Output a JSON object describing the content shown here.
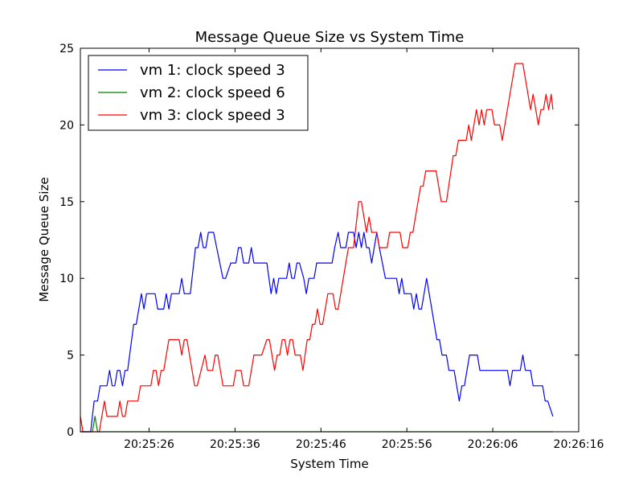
{
  "chart_data": {
    "type": "line",
    "title": "Message Queue Size vs System Time",
    "xlabel": "System Time",
    "ylabel": "Message Queue Size",
    "ylim": [
      0,
      25
    ],
    "yticks": [
      0,
      5,
      10,
      15,
      20,
      25
    ],
    "xlim": [
      "20:25:18",
      "20:26:16"
    ],
    "xticks": [
      "20:25:26",
      "20:25:36",
      "20:25:46",
      "20:25:56",
      "20:26:06",
      "20:26:16"
    ],
    "legend_position": "top-left",
    "grid": false,
    "series": [
      {
        "name": "vm 1: clock speed 3",
        "color": "#0000ff",
        "points": [
          [
            "20:25:18.0",
            0
          ],
          [
            "20:25:19.2",
            0
          ],
          [
            "20:25:19.6",
            2
          ],
          [
            "20:25:20.0",
            2
          ],
          [
            "20:25:20.3",
            3
          ],
          [
            "20:25:21.1",
            3
          ],
          [
            "20:25:21.4",
            4
          ],
          [
            "20:25:21.7",
            3
          ],
          [
            "20:25:22.0",
            3
          ],
          [
            "20:25:22.3",
            4
          ],
          [
            "20:25:22.6",
            4
          ],
          [
            "20:25:22.9",
            3
          ],
          [
            "20:25:23.2",
            4
          ],
          [
            "20:25:23.5",
            4
          ],
          [
            "20:25:24.2",
            7
          ],
          [
            "20:25:24.5",
            7
          ],
          [
            "20:25:25.1",
            9
          ],
          [
            "20:25:25.4",
            8
          ],
          [
            "20:25:25.7",
            9
          ],
          [
            "20:25:26.7",
            9
          ],
          [
            "20:25:27.0",
            8
          ],
          [
            "20:25:27.7",
            8
          ],
          [
            "20:25:28.0",
            9
          ],
          [
            "20:25:28.3",
            8
          ],
          [
            "20:25:28.6",
            9
          ],
          [
            "20:25:29.5",
            9
          ],
          [
            "20:25:29.8",
            10
          ],
          [
            "20:25:30.1",
            9
          ],
          [
            "20:25:30.8",
            9
          ],
          [
            "20:25:31.4",
            12
          ],
          [
            "20:25:31.7",
            12
          ],
          [
            "20:25:32.0",
            13
          ],
          [
            "20:25:32.3",
            12
          ],
          [
            "20:25:32.6",
            12
          ],
          [
            "20:25:32.9",
            13
          ],
          [
            "20:25:33.5",
            13
          ],
          [
            "20:25:34.6",
            10
          ],
          [
            "20:25:34.9",
            10
          ],
          [
            "20:25:35.5",
            11
          ],
          [
            "20:25:36.1",
            11
          ],
          [
            "20:25:36.4",
            12
          ],
          [
            "20:25:36.7",
            12
          ],
          [
            "20:25:37.0",
            11
          ],
          [
            "20:25:37.6",
            11
          ],
          [
            "20:25:37.9",
            12
          ],
          [
            "20:25:38.2",
            11
          ],
          [
            "20:25:39.7",
            11
          ],
          [
            "20:25:40.2",
            9
          ],
          [
            "20:25:40.5",
            10
          ],
          [
            "20:25:40.8",
            9
          ],
          [
            "20:25:41.1",
            10
          ],
          [
            "20:25:42.0",
            10
          ],
          [
            "20:25:42.3",
            11
          ],
          [
            "20:25:42.6",
            10
          ],
          [
            "20:25:42.9",
            10
          ],
          [
            "20:25:43.2",
            11
          ],
          [
            "20:25:43.5",
            11
          ],
          [
            "20:25:44.0",
            10
          ],
          [
            "20:25:44.3",
            9
          ],
          [
            "20:25:44.6",
            10
          ],
          [
            "20:25:45.2",
            10
          ],
          [
            "20:25:45.5",
            11
          ],
          [
            "20:25:47.3",
            11
          ],
          [
            "20:25:47.6",
            12
          ],
          [
            "20:25:48.0",
            13
          ],
          [
            "20:25:48.3",
            12
          ],
          [
            "20:25:48.9",
            12
          ],
          [
            "20:25:49.2",
            13
          ],
          [
            "20:25:49.8",
            13
          ],
          [
            "20:25:50.1",
            12
          ],
          [
            "20:25:50.4",
            13
          ],
          [
            "20:25:50.7",
            12
          ],
          [
            "20:25:51.0",
            13
          ],
          [
            "20:25:51.3",
            12
          ],
          [
            "20:25:51.6",
            12
          ],
          [
            "20:25:51.9",
            11
          ],
          [
            "20:25:52.2",
            12
          ],
          [
            "20:25:52.5",
            13
          ],
          [
            "20:25:52.8",
            12
          ],
          [
            "20:25:53.5",
            10
          ],
          [
            "20:25:54.8",
            10
          ],
          [
            "20:25:55.1",
            9
          ],
          [
            "20:25:55.4",
            10
          ],
          [
            "20:25:55.7",
            9
          ],
          [
            "20:25:56.5",
            9
          ],
          [
            "20:25:56.8",
            8
          ],
          [
            "20:25:57.1",
            9
          ],
          [
            "20:25:57.4",
            8
          ],
          [
            "20:25:57.7",
            8
          ],
          [
            "20:25:58.3",
            10
          ],
          [
            "20:25:59.5",
            6
          ],
          [
            "20:25:59.8",
            6
          ],
          [
            "20:26:00.1",
            5
          ],
          [
            "20:26:00.6",
            5
          ],
          [
            "20:26:00.9",
            4
          ],
          [
            "20:26:01.5",
            4
          ],
          [
            "20:26:02.1",
            2
          ],
          [
            "20:26:02.4",
            3
          ],
          [
            "20:26:02.7",
            3
          ],
          [
            "20:26:03.3",
            5
          ],
          [
            "20:26:04.2",
            5
          ],
          [
            "20:26:04.5",
            4
          ],
          [
            "20:26:07.7",
            4
          ],
          [
            "20:26:08.0",
            3
          ],
          [
            "20:26:08.3",
            4
          ],
          [
            "20:26:09.2",
            4
          ],
          [
            "20:26:09.5",
            5
          ],
          [
            "20:26:09.8",
            4
          ],
          [
            "20:26:10.4",
            4
          ],
          [
            "20:26:10.7",
            3
          ],
          [
            "20:26:11.8",
            3
          ],
          [
            "20:26:12.1",
            2
          ],
          [
            "20:26:12.4",
            2
          ],
          [
            "20:26:13.0",
            1
          ]
        ]
      },
      {
        "name": "vm 2: clock speed 6",
        "color": "#008000",
        "points": [
          [
            "20:25:18.0",
            0
          ],
          [
            "20:25:19.4",
            0
          ],
          [
            "20:25:19.7",
            1
          ],
          [
            "20:25:20.0",
            0
          ],
          [
            "20:26:13.0",
            0
          ]
        ]
      },
      {
        "name": "vm 3: clock speed 3",
        "color": "#ff0000",
        "points": [
          [
            "20:25:18.0",
            1
          ],
          [
            "20:25:18.3",
            0
          ],
          [
            "20:25:20.2",
            0
          ],
          [
            "20:25:20.8",
            2
          ],
          [
            "20:25:21.1",
            1
          ],
          [
            "20:25:22.3",
            1
          ],
          [
            "20:25:22.6",
            2
          ],
          [
            "20:25:22.9",
            1
          ],
          [
            "20:25:23.2",
            1
          ],
          [
            "20:25:23.5",
            2
          ],
          [
            "20:25:24.7",
            2
          ],
          [
            "20:25:25.0",
            3
          ],
          [
            "20:25:26.2",
            3
          ],
          [
            "20:25:26.5",
            4
          ],
          [
            "20:25:26.8",
            4
          ],
          [
            "20:25:27.1",
            3
          ],
          [
            "20:25:27.4",
            4
          ],
          [
            "20:25:27.7",
            4
          ],
          [
            "20:25:28.3",
            6
          ],
          [
            "20:25:29.5",
            6
          ],
          [
            "20:25:29.8",
            5
          ],
          [
            "20:25:30.1",
            6
          ],
          [
            "20:25:30.4",
            6
          ],
          [
            "20:25:31.3",
            3
          ],
          [
            "20:25:31.6",
            3
          ],
          [
            "20:25:32.5",
            5
          ],
          [
            "20:25:32.8",
            4
          ],
          [
            "20:25:33.4",
            4
          ],
          [
            "20:25:33.7",
            5
          ],
          [
            "20:25:34.0",
            5
          ],
          [
            "20:25:34.6",
            3
          ],
          [
            "20:25:35.8",
            3
          ],
          [
            "20:25:36.1",
            4
          ],
          [
            "20:25:36.7",
            4
          ],
          [
            "20:25:37.0",
            3
          ],
          [
            "20:25:37.6",
            3
          ],
          [
            "20:25:38.2",
            5
          ],
          [
            "20:25:39.1",
            5
          ],
          [
            "20:25:39.7",
            6
          ],
          [
            "20:25:40.0",
            6
          ],
          [
            "20:25:40.3",
            5
          ],
          [
            "20:25:40.6",
            4
          ],
          [
            "20:25:40.9",
            5
          ],
          [
            "20:25:41.2",
            5
          ],
          [
            "20:25:41.5",
            6
          ],
          [
            "20:25:41.8",
            6
          ],
          [
            "20:25:42.1",
            5
          ],
          [
            "20:25:42.4",
            6
          ],
          [
            "20:25:42.7",
            6
          ],
          [
            "20:25:43.0",
            5
          ],
          [
            "20:25:43.6",
            5
          ],
          [
            "20:25:43.9",
            4
          ],
          [
            "20:25:44.4",
            6
          ],
          [
            "20:25:44.7",
            6
          ],
          [
            "20:25:45.0",
            7
          ],
          [
            "20:25:45.3",
            7
          ],
          [
            "20:25:45.6",
            8
          ],
          [
            "20:25:45.9",
            7
          ],
          [
            "20:25:46.2",
            7
          ],
          [
            "20:25:46.8",
            9
          ],
          [
            "20:25:47.4",
            9
          ],
          [
            "20:25:47.7",
            8
          ],
          [
            "20:25:48.0",
            8
          ],
          [
            "20:25:49.2",
            12
          ],
          [
            "20:25:49.8",
            12
          ],
          [
            "20:25:50.4",
            15
          ],
          [
            "20:25:50.7",
            15
          ],
          [
            "20:25:51.3",
            13
          ],
          [
            "20:25:51.6",
            14
          ],
          [
            "20:25:51.9",
            13
          ],
          [
            "20:25:52.5",
            13
          ],
          [
            "20:25:52.8",
            12
          ],
          [
            "20:25:53.7",
            12
          ],
          [
            "20:25:54.0",
            13
          ],
          [
            "20:25:55.2",
            13
          ],
          [
            "20:25:55.5",
            12
          ],
          [
            "20:25:56.1",
            12
          ],
          [
            "20:25:56.4",
            13
          ],
          [
            "20:25:56.7",
            13
          ],
          [
            "20:25:57.6",
            16
          ],
          [
            "20:25:57.9",
            16
          ],
          [
            "20:25:58.2",
            17
          ],
          [
            "20:25:59.4",
            17
          ],
          [
            "20:26:00.0",
            15
          ],
          [
            "20:26:00.6",
            15
          ],
          [
            "20:26:01.4",
            18
          ],
          [
            "20:26:01.7",
            18
          ],
          [
            "20:26:02.0",
            19
          ],
          [
            "20:26:02.9",
            19
          ],
          [
            "20:26:03.2",
            20
          ],
          [
            "20:26:03.5",
            19
          ],
          [
            "20:26:04.1",
            21
          ],
          [
            "20:26:04.4",
            20
          ],
          [
            "20:26:04.7",
            21
          ],
          [
            "20:26:05.0",
            20
          ],
          [
            "20:26:05.3",
            21
          ],
          [
            "20:26:05.9",
            21
          ],
          [
            "20:26:06.2",
            20
          ],
          [
            "20:26:06.8",
            20
          ],
          [
            "20:26:07.1",
            19
          ],
          [
            "20:26:08.3",
            23
          ],
          [
            "20:26:08.6",
            24
          ],
          [
            "20:26:09.5",
            24
          ],
          [
            "20:26:10.4",
            21
          ],
          [
            "20:26:10.7",
            22
          ],
          [
            "20:26:11.3",
            20
          ],
          [
            "20:26:11.6",
            21
          ],
          [
            "20:26:11.9",
            21
          ],
          [
            "20:26:12.2",
            22
          ],
          [
            "20:26:12.5",
            21
          ],
          [
            "20:26:12.8",
            22
          ],
          [
            "20:26:13.0",
            21
          ]
        ]
      }
    ]
  }
}
